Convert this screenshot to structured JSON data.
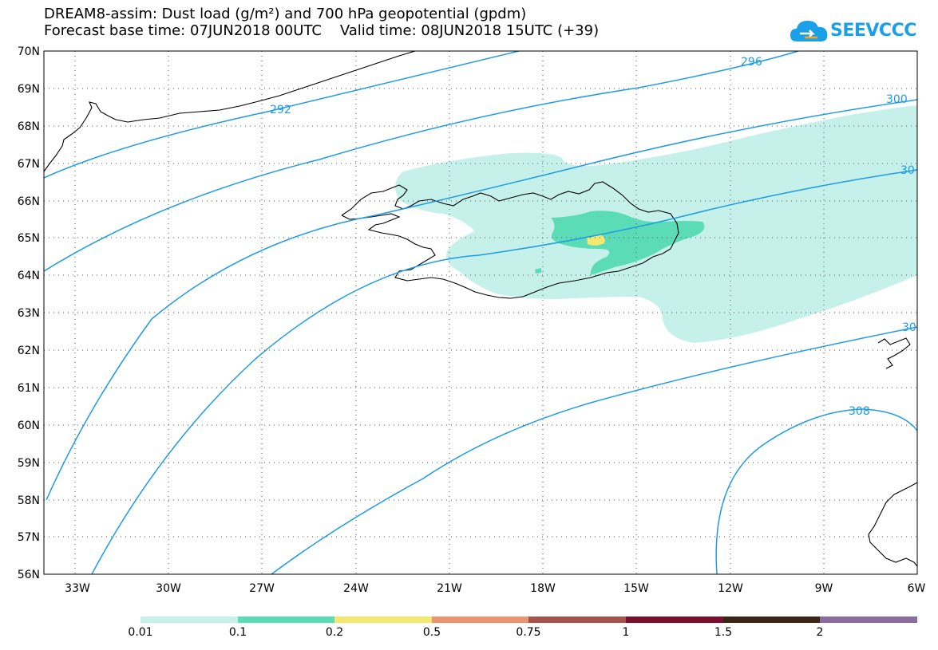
{
  "header": {
    "title_line1": "DREAM8-assim: Dust load (g/m²) and 700 hPa geopotential (gpdm)",
    "title_line2": "Forecast base time: 07JUN2018 00UTC    Valid time: 08JUN2018 15UTC (+39)"
  },
  "logo": {
    "text": "SEEVCCC",
    "icon": "cloud-icon",
    "color": "#1aa0e8"
  },
  "map": {
    "lat_labels": [
      "70N",
      "69N",
      "68N",
      "67N",
      "66N",
      "65N",
      "64N",
      "63N",
      "62N",
      "61N",
      "60N",
      "59N",
      "58N",
      "57N",
      "56N"
    ],
    "lon_labels": [
      "33W",
      "30W",
      "27W",
      "24W",
      "21W",
      "18W",
      "15W",
      "12W",
      "9W",
      "6W"
    ],
    "contour_labels": [
      "292",
      "296",
      "300",
      "30",
      "30",
      "308"
    ],
    "contour_color": "#1e9be8",
    "coastline_color": "#000000",
    "gridline_style": "dotted"
  },
  "colorbar": {
    "labels": [
      "0.01",
      "0.1",
      "0.2",
      "0.5",
      "0.75",
      "1",
      "1.5",
      "2"
    ],
    "colors": [
      "#c6f1ea",
      "#5cdcb6",
      "#f3e96e",
      "#ed9370",
      "#a7524a",
      "#7c0f2c",
      "#3b2616",
      "#8c6b9f"
    ]
  }
}
